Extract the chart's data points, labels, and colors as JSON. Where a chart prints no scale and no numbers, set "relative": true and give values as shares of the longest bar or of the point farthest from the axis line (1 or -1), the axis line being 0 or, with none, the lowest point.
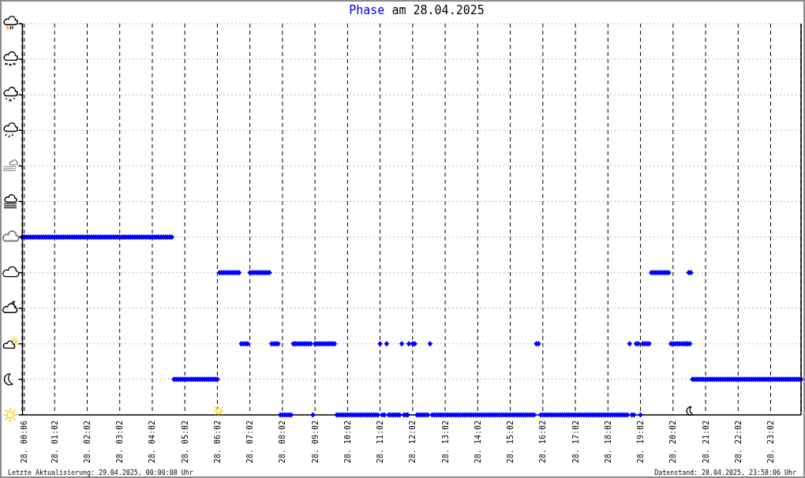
{
  "chart_data": {
    "type": "scatter",
    "title": "am 28.04.2025",
    "relative": true,
    "grid": true,
    "marker": "diamond",
    "annotations": [
      "Letzte Aktualisierung: 29.04.2025, 00:00:08 Uhr",
      "Datenstand: 28.04.2025, 23:58:06 Uhr"
    ],
    "xlim": [
      "2025-04-28T00:02",
      "2025-04-28T23:58"
    ],
    "xticks": [
      {
        "value": "2025-04-28T00:06",
        "label": "28. 00:06"
      },
      {
        "value": "2025-04-28T01:02",
        "label": "28. 01:02"
      },
      {
        "value": "2025-04-28T02:02",
        "label": "28. 02:02"
      },
      {
        "value": "2025-04-28T03:02",
        "label": "28. 03:02"
      },
      {
        "value": "2025-04-28T04:02",
        "label": "28. 04:02"
      },
      {
        "value": "2025-04-28T05:02",
        "label": "28. 05:02"
      },
      {
        "value": "2025-04-28T06:02",
        "label": "28. 06:02"
      },
      {
        "value": "2025-04-28T07:02",
        "label": "28. 07:02"
      },
      {
        "value": "2025-04-28T08:02",
        "label": "28. 08:02"
      },
      {
        "value": "2025-04-28T09:02",
        "label": "28. 09:02"
      },
      {
        "value": "2025-04-28T10:02",
        "label": "28. 10:02"
      },
      {
        "value": "2025-04-28T11:02",
        "label": "28. 11:02"
      },
      {
        "value": "2025-04-28T12:02",
        "label": "28. 12:02"
      },
      {
        "value": "2025-04-28T13:02",
        "label": "28. 13:02"
      },
      {
        "value": "2025-04-28T14:02",
        "label": "28. 14:02"
      },
      {
        "value": "2025-04-28T15:02",
        "label": "28. 15:02"
      },
      {
        "value": "2025-04-28T16:02",
        "label": "28. 16:02"
      },
      {
        "value": "2025-04-28T17:02",
        "label": "28. 17:02"
      },
      {
        "value": "2025-04-28T18:02",
        "label": "28. 18:02"
      },
      {
        "value": "2025-04-28T19:02",
        "label": "28. 19:02"
      },
      {
        "value": "2025-04-28T20:02",
        "label": "28. 20:02"
      },
      {
        "value": "2025-04-28T21:02",
        "label": "28. 21:02"
      },
      {
        "value": "2025-04-28T22:02",
        "label": "28. 22:02"
      },
      {
        "value": "2025-04-28T23:02",
        "label": "28. 23:02"
      }
    ],
    "series": [
      {
        "name": "Phase",
        "color": "#0000ff",
        "x": [
          "2025-04-28T00:02",
          "2025-04-28T00:06",
          "2025-04-28T00:10",
          "2025-04-28T00:14",
          "2025-04-28T00:18",
          "2025-04-28T00:22",
          "2025-04-28T00:26",
          "2025-04-28T00:30",
          "2025-04-28T00:34",
          "2025-04-28T00:38",
          "2025-04-28T00:42",
          "2025-04-28T00:46",
          "2025-04-28T00:50",
          "2025-04-28T00:54",
          "2025-04-28T00:58",
          "2025-04-28T01:02",
          "2025-04-28T01:06",
          "2025-04-28T01:10",
          "2025-04-28T01:14",
          "2025-04-28T01:18",
          "2025-04-28T01:22",
          "2025-04-28T01:26",
          "2025-04-28T01:30",
          "2025-04-28T01:34",
          "2025-04-28T01:38",
          "2025-04-28T01:42",
          "2025-04-28T01:46",
          "2025-04-28T01:50",
          "2025-04-28T01:54",
          "2025-04-28T01:58",
          "2025-04-28T02:02",
          "2025-04-28T02:06",
          "2025-04-28T02:10",
          "2025-04-28T02:14",
          "2025-04-28T02:18",
          "2025-04-28T02:22",
          "2025-04-28T02:26",
          "2025-04-28T02:30",
          "2025-04-28T02:34",
          "2025-04-28T02:38",
          "2025-04-28T02:42",
          "2025-04-28T02:46",
          "2025-04-28T02:50",
          "2025-04-28T02:54",
          "2025-04-28T02:58",
          "2025-04-28T03:02",
          "2025-04-28T03:06",
          "2025-04-28T03:10",
          "2025-04-28T03:14",
          "2025-04-28T03:18",
          "2025-04-28T03:22",
          "2025-04-28T03:26",
          "2025-04-28T03:30",
          "2025-04-28T03:34",
          "2025-04-28T03:38",
          "2025-04-28T03:42",
          "2025-04-28T03:46",
          "2025-04-28T03:50",
          "2025-04-28T03:54",
          "2025-04-28T03:58",
          "2025-04-28T04:02",
          "2025-04-28T04:06",
          "2025-04-28T04:10",
          "2025-04-28T04:14",
          "2025-04-28T04:18",
          "2025-04-28T04:22",
          "2025-04-28T04:26",
          "2025-04-28T04:30",
          "2025-04-28T04:34",
          "2025-04-28T04:38",
          "2025-04-28T04:42",
          "2025-04-28T04:46",
          "2025-04-28T04:50",
          "2025-04-28T04:54",
          "2025-04-28T04:58",
          "2025-04-28T05:02",
          "2025-04-28T05:06",
          "2025-04-28T05:10",
          "2025-04-28T05:14",
          "2025-04-28T05:18",
          "2025-04-28T05:22",
          "2025-04-28T05:26",
          "2025-04-28T05:30",
          "2025-04-28T05:34",
          "2025-04-28T05:38",
          "2025-04-28T05:42",
          "2025-04-28T05:46",
          "2025-04-28T05:50",
          "2025-04-28T05:54",
          "2025-04-28T05:58",
          "2025-04-28T06:02",
          "2025-04-28T06:06",
          "2025-04-28T06:10",
          "2025-04-28T06:14",
          "2025-04-28T06:18",
          "2025-04-28T06:22",
          "2025-04-28T06:26",
          "2025-04-28T06:30",
          "2025-04-28T06:34",
          "2025-04-28T06:38",
          "2025-04-28T06:42",
          "2025-04-28T06:46",
          "2025-04-28T06:50",
          "2025-04-28T06:54",
          "2025-04-28T06:58",
          "2025-04-28T07:02",
          "2025-04-28T07:06",
          "2025-04-28T07:10",
          "2025-04-28T07:14",
          "2025-04-28T07:18",
          "2025-04-28T07:22",
          "2025-04-28T07:26",
          "2025-04-28T07:30",
          "2025-04-28T07:34",
          "2025-04-28T07:38",
          "2025-04-28T07:42",
          "2025-04-28T07:46",
          "2025-04-28T07:50",
          "2025-04-28T07:54",
          "2025-04-28T07:58",
          "2025-04-28T08:02",
          "2025-04-28T08:06",
          "2025-04-28T08:10",
          "2025-04-28T08:14",
          "2025-04-28T08:18",
          "2025-04-28T08:22",
          "2025-04-28T08:26",
          "2025-04-28T08:30",
          "2025-04-28T08:34",
          "2025-04-28T08:38",
          "2025-04-28T08:42",
          "2025-04-28T08:46",
          "2025-04-28T08:50",
          "2025-04-28T08:54",
          "2025-04-28T08:58",
          "2025-04-28T09:02",
          "2025-04-28T09:06",
          "2025-04-28T09:10",
          "2025-04-28T09:14",
          "2025-04-28T09:18",
          "2025-04-28T09:22",
          "2025-04-28T09:26",
          "2025-04-28T09:30",
          "2025-04-28T09:34",
          "2025-04-28T09:38",
          "2025-04-28T09:42",
          "2025-04-28T09:46",
          "2025-04-28T09:50",
          "2025-04-28T09:54",
          "2025-04-28T09:58",
          "2025-04-28T10:02",
          "2025-04-28T10:06",
          "2025-04-28T10:10",
          "2025-04-28T10:14",
          "2025-04-28T10:18",
          "2025-04-28T10:22",
          "2025-04-28T10:26",
          "2025-04-28T10:30",
          "2025-04-28T10:34",
          "2025-04-28T10:38",
          "2025-04-28T10:42",
          "2025-04-28T10:46",
          "2025-04-28T10:50",
          "2025-04-28T10:54",
          "2025-04-28T10:58",
          "2025-04-28T11:02",
          "2025-04-28T11:06",
          "2025-04-28T11:10",
          "2025-04-28T11:14",
          "2025-04-28T11:18",
          "2025-04-28T11:22",
          "2025-04-28T11:26",
          "2025-04-28T11:30",
          "2025-04-28T11:34",
          "2025-04-28T11:38",
          "2025-04-28T11:42",
          "2025-04-28T11:46",
          "2025-04-28T11:50",
          "2025-04-28T11:53",
          "2025-04-28T11:55",
          "2025-04-28T12:02",
          "2025-04-28T12:06",
          "2025-04-28T12:10",
          "2025-04-28T12:14",
          "2025-04-28T12:18",
          "2025-04-28T12:22",
          "2025-04-28T12:26",
          "2025-04-28T12:30",
          "2025-04-28T12:34",
          "2025-04-28T12:38",
          "2025-04-28T12:42",
          "2025-04-28T12:46",
          "2025-04-28T12:50",
          "2025-04-28T12:54",
          "2025-04-28T12:58",
          "2025-04-28T13:02",
          "2025-04-28T13:06",
          "2025-04-28T13:10",
          "2025-04-28T13:14",
          "2025-04-28T13:18",
          "2025-04-28T13:22",
          "2025-04-28T13:26",
          "2025-04-28T13:30",
          "2025-04-28T13:34",
          "2025-04-28T13:38",
          "2025-04-28T13:42",
          "2025-04-28T13:46",
          "2025-04-28T13:50",
          "2025-04-28T13:54",
          "2025-04-28T13:58",
          "2025-04-28T14:02",
          "2025-04-28T14:06",
          "2025-04-28T14:10",
          "2025-04-28T14:14",
          "2025-04-28T14:18",
          "2025-04-28T14:22",
          "2025-04-28T14:26",
          "2025-04-28T14:30",
          "2025-04-28T14:34",
          "2025-04-28T14:38",
          "2025-04-28T14:42",
          "2025-04-28T14:46",
          "2025-04-28T14:50",
          "2025-04-28T14:54",
          "2025-04-28T14:58",
          "2025-04-28T15:02",
          "2025-04-28T15:06",
          "2025-04-28T15:10",
          "2025-04-28T15:14",
          "2025-04-28T15:18",
          "2025-04-28T15:22",
          "2025-04-28T15:26",
          "2025-04-28T15:30",
          "2025-04-28T15:34",
          "2025-04-28T15:38",
          "2025-04-28T15:42",
          "2025-04-28T15:46",
          "2025-04-28T15:50",
          "2025-04-28T15:54",
          "2025-04-28T15:58",
          "2025-04-28T16:02",
          "2025-04-28T16:06",
          "2025-04-28T16:10",
          "2025-04-28T16:14",
          "2025-04-28T16:18",
          "2025-04-28T16:22",
          "2025-04-28T16:26",
          "2025-04-28T16:30",
          "2025-04-28T16:34",
          "2025-04-28T16:38",
          "2025-04-28T16:42",
          "2025-04-28T16:46",
          "2025-04-28T16:50",
          "2025-04-28T16:54",
          "2025-04-28T16:58",
          "2025-04-28T17:02",
          "2025-04-28T17:06",
          "2025-04-28T17:10",
          "2025-04-28T17:14",
          "2025-04-28T17:18",
          "2025-04-28T17:22",
          "2025-04-28T17:26",
          "2025-04-28T17:30",
          "2025-04-28T17:34",
          "2025-04-28T17:38",
          "2025-04-28T17:42",
          "2025-04-28T17:46",
          "2025-04-28T17:50",
          "2025-04-28T17:54",
          "2025-04-28T17:58",
          "2025-04-28T18:02",
          "2025-04-28T18:06",
          "2025-04-28T18:10",
          "2025-04-28T18:14",
          "2025-04-28T18:18",
          "2025-04-28T18:22",
          "2025-04-28T18:26",
          "2025-04-28T18:30",
          "2025-04-28T18:34",
          "2025-04-28T18:38",
          "2025-04-28T18:42",
          "2025-04-28T18:46",
          "2025-04-28T18:50",
          "2025-04-28T18:54",
          "2025-04-28T18:58",
          "2025-04-28T19:02",
          "2025-04-28T19:06",
          "2025-04-28T19:10",
          "2025-04-28T19:14",
          "2025-04-28T19:18",
          "2025-04-28T19:22",
          "2025-04-28T19:26",
          "2025-04-28T19:30",
          "2025-04-28T19:34",
          "2025-04-28T19:38",
          "2025-04-28T19:42",
          "2025-04-28T19:46",
          "2025-04-28T19:50",
          "2025-04-28T19:54",
          "2025-04-28T19:58",
          "2025-04-28T20:02",
          "2025-04-28T20:06",
          "2025-04-28T20:10",
          "2025-04-28T20:14",
          "2025-04-28T20:18",
          "2025-04-28T20:22",
          "2025-04-28T20:26",
          "2025-04-28T20:29",
          "2025-04-28T20:31",
          "2025-04-28T20:33",
          "2025-04-28T20:35",
          "2025-04-28T20:38",
          "2025-04-28T20:42",
          "2025-04-28T20:46",
          "2025-04-28T20:50",
          "2025-04-28T20:54",
          "2025-04-28T20:58",
          "2025-04-28T21:02",
          "2025-04-28T21:06",
          "2025-04-28T21:10",
          "2025-04-28T21:14",
          "2025-04-28T21:18",
          "2025-04-28T21:22",
          "2025-04-28T21:26",
          "2025-04-28T21:30",
          "2025-04-28T21:34",
          "2025-04-28T21:38",
          "2025-04-28T21:42",
          "2025-04-28T21:46",
          "2025-04-28T21:50",
          "2025-04-28T21:54",
          "2025-04-28T21:58",
          "2025-04-28T22:02",
          "2025-04-28T22:06",
          "2025-04-28T22:10",
          "2025-04-28T22:14",
          "2025-04-28T22:18",
          "2025-04-28T22:22",
          "2025-04-28T22:26",
          "2025-04-28T22:30",
          "2025-04-28T22:34",
          "2025-04-28T22:38",
          "2025-04-28T22:42",
          "2025-04-28T22:46",
          "2025-04-28T22:50",
          "2025-04-28T22:54",
          "2025-04-28T22:58",
          "2025-04-28T23:02",
          "2025-04-28T23:06",
          "2025-04-28T23:10",
          "2025-04-28T23:14",
          "2025-04-28T23:18",
          "2025-04-28T23:22",
          "2025-04-28T23:26",
          "2025-04-28T23:30",
          "2025-04-28T23:34",
          "2025-04-28T23:38",
          "2025-04-28T23:42",
          "2025-04-28T23:46",
          "2025-04-28T23:50",
          "2025-04-28T23:54",
          "2025-04-28T23:58"
        ],
        "values": [
          1,
          1,
          1,
          1,
          1,
          1,
          1,
          1,
          1,
          1,
          1,
          1,
          1,
          1,
          1,
          1,
          1,
          1,
          1,
          1,
          1,
          1,
          1,
          1,
          1,
          1,
          1,
          1,
          1,
          1,
          1,
          1,
          1,
          1,
          1,
          1,
          1,
          1,
          1,
          1,
          1,
          1,
          1,
          1,
          1,
          1,
          1,
          1,
          1,
          1,
          1,
          1,
          1,
          1,
          1,
          1,
          1,
          1,
          1,
          1,
          1,
          1,
          1,
          1,
          1,
          1,
          1,
          1,
          1,
          1,
          0.2,
          0.2,
          0.2,
          0.2,
          0.2,
          0.2,
          0.2,
          0.2,
          0.2,
          0.2,
          0.2,
          0.2,
          0.2,
          0.2,
          0.2,
          0.2,
          0.2,
          0.2,
          0.2,
          0.2,
          0.2,
          0.8,
          0.8,
          0.8,
          0.8,
          0.8,
          0.8,
          0.8,
          0.8,
          0.8,
          0.8,
          0.4,
          0.4,
          0.4,
          0.4,
          0.8,
          0.8,
          0.8,
          0.8,
          0.8,
          0.8,
          0.8,
          0.8,
          0.8,
          0.8,
          0.4,
          0.4,
          0.4,
          0.4,
          0,
          0,
          0,
          0,
          0,
          0,
          0.4,
          0.4,
          0.4,
          0.4,
          0.4,
          0.4,
          0.4,
          0.4,
          0.4,
          0,
          0.4,
          0.4,
          0.4,
          0.4,
          0.4,
          0.4,
          0.4,
          0.4,
          0.4,
          0.4,
          0,
          0,
          0,
          0,
          0,
          0,
          0,
          0,
          0,
          0,
          0,
          0,
          0,
          0,
          0,
          0,
          0,
          0,
          0,
          0,
          0.4,
          0,
          0,
          0.4,
          0,
          0,
          0,
          0,
          0,
          0,
          0.4,
          0,
          0,
          0,
          0.4,
          0.4,
          0.4,
          0,
          0,
          0,
          0,
          0,
          0,
          0.4,
          0,
          0,
          0,
          0,
          0,
          0,
          0,
          0,
          0,
          0,
          0,
          0,
          0,
          0,
          0,
          0,
          0,
          0,
          0,
          0,
          0,
          0,
          0,
          0,
          0,
          0,
          0,
          0,
          0,
          0,
          0,
          0,
          0,
          0,
          0,
          0,
          0,
          0,
          0,
          0,
          0,
          0,
          0,
          0,
          0,
          0,
          0,
          0,
          0.4,
          0.4,
          0,
          0,
          0,
          0,
          0,
          0,
          0,
          0,
          0,
          0,
          0,
          0,
          0,
          0,
          0,
          0,
          0,
          0,
          0,
          0,
          0,
          0,
          0,
          0,
          0,
          0,
          0,
          0,
          0,
          0,
          0,
          0,
          0,
          0,
          0,
          0,
          0,
          0,
          0,
          0,
          0,
          0.4,
          0,
          0,
          0.4,
          0.4,
          0,
          0.4,
          0.4,
          0.4,
          0.4,
          0.8,
          0.8,
          0.8,
          0.8,
          0.8,
          0.8,
          0.8,
          0.8,
          0.8,
          0.4,
          0.4,
          0.4,
          0.4,
          0.4,
          0.4,
          0.4,
          0.4,
          0.4,
          0.8,
          0.4,
          0.8,
          0.2,
          0.2,
          0.2,
          0.2,
          0.2,
          0.2,
          0.2,
          0.2,
          0.2,
          0.2,
          0.2,
          0.2,
          0.2,
          0.2,
          0.2,
          0.2,
          0.2,
          0.2,
          0.2,
          0.2,
          0.2,
          0.2,
          0.2,
          0.2,
          0.2,
          0.2,
          0.2,
          0.2,
          0.2,
          0.2,
          0.2,
          0.2,
          0.2,
          0.2,
          0.2,
          0.2,
          0.2,
          0.2,
          0.2,
          0.2,
          0.2,
          0.2,
          0.2,
          0.2,
          0.2,
          0.2,
          0.2,
          0.2,
          0.2,
          0.2,
          0.2
        ]
      }
    ]
  }
}
